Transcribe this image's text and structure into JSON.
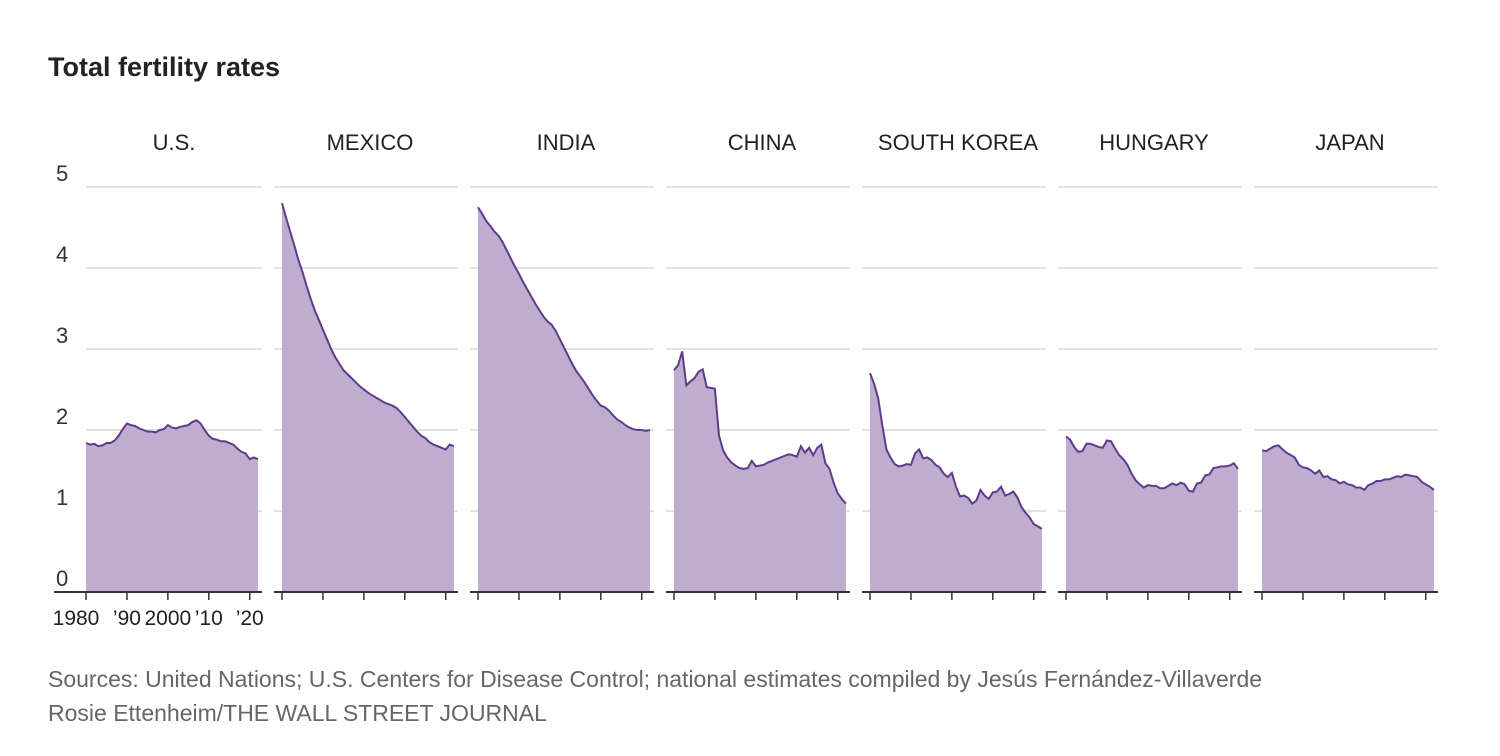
{
  "chart_data": {
    "type": "area",
    "title": "Total fertility rates",
    "ylim": [
      0,
      5
    ],
    "yticks": [
      0,
      1,
      2,
      3,
      4,
      5
    ],
    "xlim": [
      1980,
      2023
    ],
    "xtick_labels": [
      "1980",
      "’90",
      "2000",
      "’10",
      "’20"
    ],
    "xtick_values": [
      1980,
      1990,
      2000,
      2010,
      2020
    ],
    "series": [
      {
        "name": "U.S.",
        "x": [
          1980,
          1981,
          1982,
          1983,
          1984,
          1985,
          1986,
          1987,
          1988,
          1989,
          1990,
          1991,
          1992,
          1993,
          1994,
          1995,
          1996,
          1997,
          1998,
          1999,
          2000,
          2001,
          2002,
          2003,
          2004,
          2005,
          2006,
          2007,
          2008,
          2009,
          2010,
          2011,
          2012,
          2013,
          2014,
          2015,
          2016,
          2017,
          2018,
          2019,
          2020,
          2021,
          2022
        ],
        "values": [
          1.84,
          1.82,
          1.83,
          1.8,
          1.81,
          1.84,
          1.84,
          1.87,
          1.93,
          2.01,
          2.08,
          2.06,
          2.05,
          2.02,
          2.0,
          1.98,
          1.98,
          1.97,
          2.0,
          2.01,
          2.06,
          2.03,
          2.02,
          2.04,
          2.05,
          2.06,
          2.1,
          2.12,
          2.08,
          2.0,
          1.93,
          1.89,
          1.88,
          1.86,
          1.86,
          1.84,
          1.82,
          1.77,
          1.73,
          1.71,
          1.64,
          1.66,
          1.64
        ]
      },
      {
        "name": "MEXICO",
        "x": [
          1980,
          1981,
          1982,
          1983,
          1984,
          1985,
          1986,
          1987,
          1988,
          1989,
          1990,
          1991,
          1992,
          1993,
          1994,
          1995,
          1996,
          1997,
          1998,
          1999,
          2000,
          2001,
          2002,
          2003,
          2004,
          2005,
          2006,
          2007,
          2008,
          2009,
          2010,
          2011,
          2012,
          2013,
          2014,
          2015,
          2016,
          2017,
          2018,
          2019,
          2020,
          2021,
          2022
        ],
        "values": [
          4.8,
          4.62,
          4.45,
          4.28,
          4.1,
          3.95,
          3.78,
          3.62,
          3.48,
          3.36,
          3.24,
          3.12,
          3.0,
          2.9,
          2.82,
          2.74,
          2.69,
          2.64,
          2.59,
          2.54,
          2.5,
          2.46,
          2.43,
          2.4,
          2.37,
          2.34,
          2.32,
          2.3,
          2.27,
          2.22,
          2.16,
          2.1,
          2.04,
          1.98,
          1.93,
          1.9,
          1.85,
          1.82,
          1.8,
          1.78,
          1.76,
          1.82,
          1.8
        ]
      },
      {
        "name": "INDIA",
        "x": [
          1980,
          1981,
          1982,
          1983,
          1984,
          1985,
          1986,
          1987,
          1988,
          1989,
          1990,
          1991,
          1992,
          1993,
          1994,
          1995,
          1996,
          1997,
          1998,
          1999,
          2000,
          2001,
          2002,
          2003,
          2004,
          2005,
          2006,
          2007,
          2008,
          2009,
          2010,
          2011,
          2012,
          2013,
          2014,
          2015,
          2016,
          2017,
          2018,
          2019,
          2020,
          2021,
          2022
        ],
        "values": [
          4.75,
          4.67,
          4.58,
          4.52,
          4.45,
          4.4,
          4.32,
          4.22,
          4.12,
          4.02,
          3.93,
          3.83,
          3.74,
          3.65,
          3.56,
          3.48,
          3.4,
          3.34,
          3.3,
          3.22,
          3.12,
          3.02,
          2.92,
          2.82,
          2.73,
          2.66,
          2.59,
          2.51,
          2.43,
          2.36,
          2.3,
          2.28,
          2.24,
          2.18,
          2.13,
          2.1,
          2.06,
          2.03,
          2.01,
          2.0,
          2.0,
          1.99,
          2.0
        ]
      },
      {
        "name": "CHINA",
        "x": [
          1980,
          1981,
          1982,
          1983,
          1984,
          1985,
          1986,
          1987,
          1988,
          1989,
          1990,
          1991,
          1992,
          1993,
          1994,
          1995,
          1996,
          1997,
          1998,
          1999,
          2000,
          2001,
          2002,
          2003,
          2004,
          2005,
          2006,
          2007,
          2008,
          2009,
          2010,
          2011,
          2012,
          2013,
          2014,
          2015,
          2016,
          2017,
          2018,
          2019,
          2020,
          2021,
          2022
        ],
        "values": [
          2.74,
          2.8,
          2.97,
          2.55,
          2.6,
          2.64,
          2.72,
          2.75,
          2.53,
          2.52,
          2.51,
          1.93,
          1.75,
          1.66,
          1.6,
          1.56,
          1.53,
          1.52,
          1.53,
          1.62,
          1.55,
          1.56,
          1.57,
          1.6,
          1.62,
          1.64,
          1.66,
          1.68,
          1.7,
          1.69,
          1.67,
          1.8,
          1.72,
          1.78,
          1.69,
          1.78,
          1.82,
          1.59,
          1.52,
          1.35,
          1.22,
          1.15,
          1.09
        ]
      },
      {
        "name": "SOUTH KOREA",
        "x": [
          1980,
          1981,
          1982,
          1983,
          1984,
          1985,
          1986,
          1987,
          1988,
          1989,
          1990,
          1991,
          1992,
          1993,
          1994,
          1995,
          1996,
          1997,
          1998,
          1999,
          2000,
          2001,
          2002,
          2003,
          2004,
          2005,
          2006,
          2007,
          2008,
          2009,
          2010,
          2011,
          2012,
          2013,
          2014,
          2015,
          2016,
          2017,
          2018,
          2019,
          2020,
          2021,
          2022
        ],
        "values": [
          2.7,
          2.57,
          2.39,
          2.06,
          1.76,
          1.66,
          1.58,
          1.55,
          1.56,
          1.58,
          1.57,
          1.71,
          1.76,
          1.65,
          1.66,
          1.63,
          1.57,
          1.54,
          1.46,
          1.42,
          1.47,
          1.3,
          1.18,
          1.19,
          1.16,
          1.09,
          1.13,
          1.26,
          1.19,
          1.15,
          1.23,
          1.24,
          1.3,
          1.19,
          1.21,
          1.24,
          1.17,
          1.05,
          0.98,
          0.92,
          0.84,
          0.81,
          0.78
        ]
      },
      {
        "name": "HUNGARY",
        "x": [
          1980,
          1981,
          1982,
          1983,
          1984,
          1985,
          1986,
          1987,
          1988,
          1989,
          1990,
          1991,
          1992,
          1993,
          1994,
          1995,
          1996,
          1997,
          1998,
          1999,
          2000,
          2001,
          2002,
          2003,
          2004,
          2005,
          2006,
          2007,
          2008,
          2009,
          2010,
          2011,
          2012,
          2013,
          2014,
          2015,
          2016,
          2017,
          2018,
          2019,
          2020,
          2021,
          2022
        ],
        "values": [
          1.92,
          1.88,
          1.79,
          1.73,
          1.74,
          1.83,
          1.83,
          1.81,
          1.79,
          1.78,
          1.87,
          1.86,
          1.77,
          1.69,
          1.64,
          1.57,
          1.46,
          1.38,
          1.33,
          1.29,
          1.32,
          1.31,
          1.31,
          1.28,
          1.28,
          1.31,
          1.34,
          1.32,
          1.35,
          1.33,
          1.25,
          1.24,
          1.34,
          1.35,
          1.44,
          1.45,
          1.53,
          1.54,
          1.55,
          1.55,
          1.56,
          1.59,
          1.52
        ]
      },
      {
        "name": "JAPAN",
        "x": [
          1980,
          1981,
          1982,
          1983,
          1984,
          1985,
          1986,
          1987,
          1988,
          1989,
          1990,
          1991,
          1992,
          1993,
          1994,
          1995,
          1996,
          1997,
          1998,
          1999,
          2000,
          2001,
          2002,
          2003,
          2004,
          2005,
          2006,
          2007,
          2008,
          2009,
          2010,
          2011,
          2012,
          2013,
          2014,
          2015,
          2016,
          2017,
          2018,
          2019,
          2020,
          2021,
          2022
        ],
        "values": [
          1.75,
          1.74,
          1.77,
          1.8,
          1.81,
          1.76,
          1.72,
          1.69,
          1.66,
          1.57,
          1.54,
          1.53,
          1.5,
          1.46,
          1.5,
          1.42,
          1.43,
          1.39,
          1.38,
          1.34,
          1.36,
          1.33,
          1.32,
          1.29,
          1.29,
          1.26,
          1.32,
          1.34,
          1.37,
          1.37,
          1.39,
          1.39,
          1.41,
          1.43,
          1.42,
          1.45,
          1.44,
          1.43,
          1.42,
          1.36,
          1.33,
          1.3,
          1.26
        ]
      }
    ]
  },
  "sources": {
    "line1": "Sources: United Nations; U.S. Centers for Disease Control; national estimates compiled by Jesús Fernández-Villaverde",
    "line2": "Rosie Ettenheim/THE WALL STREET JOURNAL"
  },
  "colors": {
    "fill": "#bfaccf",
    "line": "#5f3b8c",
    "grid": "#d9d9d9",
    "axis": "#333333"
  }
}
